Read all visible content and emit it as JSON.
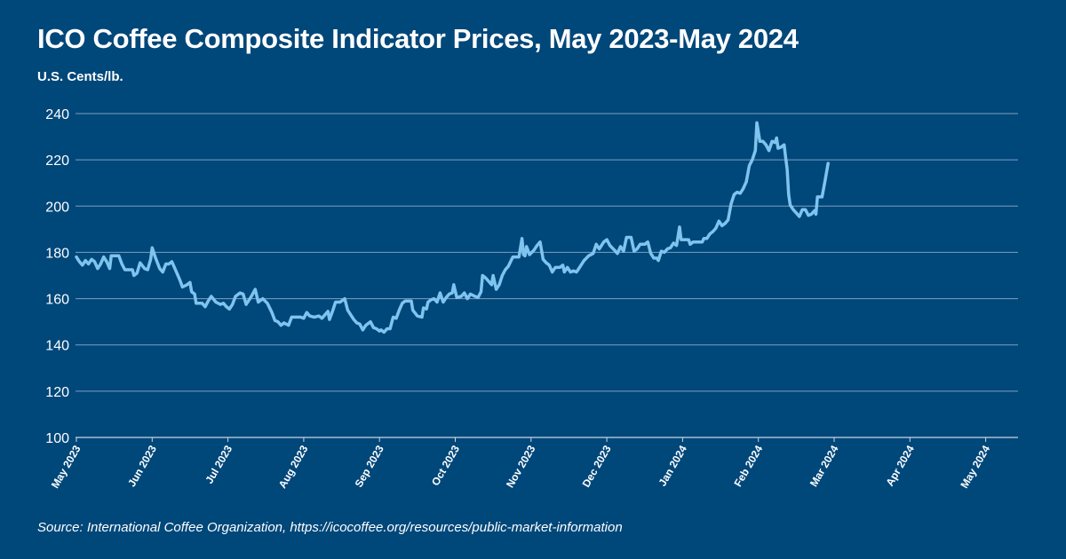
{
  "chart_data": {
    "type": "line",
    "title": "ICO Coffee Composite Indicator Prices, May 2023-May 2024",
    "ylabel": "U.S. Cents/lb.",
    "source": "Source: International Coffee Organization, https://icocoffee.org/resources/public-market-information",
    "ylim": [
      100,
      240
    ],
    "yticks": [
      100,
      120,
      140,
      160,
      180,
      200,
      220,
      240
    ],
    "x_tick_labels": [
      "May 2023",
      "Jun 2023",
      "Jul 2023",
      "Aug 2023",
      "Sep 2023",
      "Oct 2023",
      "Nov 2023",
      "Dec 2023",
      "Jan 2024",
      "Feb 2024",
      "Mar 2024",
      "Apr 2024",
      "May 2024"
    ],
    "grid": true,
    "line_color": "#7fc4ef",
    "grid_color": "#7f9fbf",
    "series": [
      {
        "points": [
          [
            0,
            178
          ],
          [
            0.04,
            176
          ],
          [
            0.08,
            174.5
          ],
          [
            0.12,
            176.5
          ],
          [
            0.16,
            175
          ],
          [
            0.2,
            177
          ],
          [
            0.24,
            176
          ],
          [
            0.28,
            173
          ],
          [
            0.32,
            175
          ],
          [
            0.36,
            178
          ],
          [
            0.4,
            176
          ],
          [
            0.44,
            173
          ],
          [
            0.46,
            178.5
          ],
          [
            0.52,
            178.5
          ],
          [
            0.56,
            178.5
          ],
          [
            0.6,
            175
          ],
          [
            0.64,
            172.5
          ],
          [
            0.7,
            172.5
          ],
          [
            0.74,
            172.5
          ],
          [
            0.76,
            170
          ],
          [
            0.8,
            171
          ],
          [
            0.84,
            175.5
          ],
          [
            0.9,
            173
          ],
          [
            0.94,
            172.5
          ],
          [
            0.98,
            177
          ],
          [
            1.0,
            182
          ],
          [
            1.04,
            178
          ],
          [
            1.1,
            173
          ],
          [
            1.14,
            171.5
          ],
          [
            1.18,
            175
          ],
          [
            1.22,
            175
          ],
          [
            1.26,
            176
          ],
          [
            1.3,
            173
          ],
          [
            1.36,
            168.5
          ],
          [
            1.4,
            165
          ],
          [
            1.46,
            166
          ],
          [
            1.5,
            167
          ],
          [
            1.52,
            163
          ],
          [
            1.56,
            162
          ],
          [
            1.58,
            158
          ],
          [
            1.62,
            158
          ],
          [
            1.66,
            158
          ],
          [
            1.7,
            156.5
          ],
          [
            1.74,
            159
          ],
          [
            1.78,
            161
          ],
          [
            1.84,
            158.5
          ],
          [
            1.9,
            157.5
          ],
          [
            1.94,
            158
          ],
          [
            1.98,
            156.5
          ],
          [
            2.02,
            155.5
          ],
          [
            2.06,
            157.5
          ],
          [
            2.1,
            161
          ],
          [
            2.16,
            162.5
          ],
          [
            2.2,
            162
          ],
          [
            2.24,
            157.5
          ],
          [
            2.3,
            160.5
          ],
          [
            2.36,
            164
          ],
          [
            2.4,
            158.5
          ],
          [
            2.46,
            160
          ],
          [
            2.52,
            158
          ],
          [
            2.58,
            154
          ],
          [
            2.62,
            150.5
          ],
          [
            2.66,
            150
          ],
          [
            2.7,
            148.5
          ],
          [
            2.74,
            149.5
          ],
          [
            2.8,
            148.5
          ],
          [
            2.84,
            152
          ],
          [
            2.9,
            152
          ],
          [
            2.96,
            152
          ],
          [
            3.0,
            151.5
          ],
          [
            3.04,
            154
          ],
          [
            3.08,
            152.5
          ],
          [
            3.14,
            152
          ],
          [
            3.2,
            152.5
          ],
          [
            3.24,
            151.5
          ],
          [
            3.28,
            153
          ],
          [
            3.32,
            154.5
          ],
          [
            3.34,
            151
          ],
          [
            3.38,
            154.5
          ],
          [
            3.42,
            158.5
          ],
          [
            3.48,
            158.5
          ],
          [
            3.54,
            160
          ],
          [
            3.58,
            155
          ],
          [
            3.62,
            153
          ],
          [
            3.66,
            151
          ],
          [
            3.7,
            149.5
          ],
          [
            3.74,
            149
          ],
          [
            3.78,
            146.5
          ],
          [
            3.82,
            148.5
          ],
          [
            3.88,
            150
          ],
          [
            3.92,
            147.5
          ],
          [
            3.96,
            147
          ],
          [
            4.0,
            146
          ],
          [
            4.02,
            146.5
          ],
          [
            4.06,
            145.5
          ],
          [
            4.1,
            147
          ],
          [
            4.14,
            147
          ],
          [
            4.18,
            152
          ],
          [
            4.22,
            151.5
          ],
          [
            4.26,
            155
          ],
          [
            4.3,
            158
          ],
          [
            4.34,
            159
          ],
          [
            4.38,
            159
          ],
          [
            4.42,
            159
          ],
          [
            4.44,
            155
          ],
          [
            4.5,
            152.5
          ],
          [
            4.56,
            152
          ],
          [
            4.58,
            156
          ],
          [
            4.62,
            155.5
          ],
          [
            4.64,
            158.5
          ],
          [
            4.68,
            159.5
          ],
          [
            4.72,
            160
          ],
          [
            4.76,
            158.5
          ],
          [
            4.8,
            162.5
          ],
          [
            4.84,
            158.5
          ],
          [
            4.88,
            160.5
          ],
          [
            4.92,
            162
          ],
          [
            4.96,
            162.5
          ],
          [
            4.98,
            166
          ],
          [
            5.02,
            160.5
          ],
          [
            5.08,
            161
          ],
          [
            5.12,
            162.5
          ],
          [
            5.16,
            160
          ],
          [
            5.2,
            162
          ],
          [
            5.26,
            161
          ],
          [
            5.3,
            160.5
          ],
          [
            5.34,
            163
          ],
          [
            5.36,
            170
          ],
          [
            5.4,
            169
          ],
          [
            5.44,
            167.5
          ],
          [
            5.48,
            166
          ],
          [
            5.5,
            170
          ],
          [
            5.54,
            164
          ],
          [
            5.58,
            166
          ],
          [
            5.62,
            170
          ],
          [
            5.66,
            172.5
          ],
          [
            5.7,
            174
          ],
          [
            5.76,
            178
          ],
          [
            5.8,
            178
          ],
          [
            5.84,
            178
          ],
          [
            5.88,
            186
          ],
          [
            5.9,
            179
          ],
          [
            5.92,
            178.5
          ],
          [
            5.94,
            182.5
          ],
          [
            5.98,
            179
          ],
          [
            6.04,
            181
          ],
          [
            6.08,
            183
          ],
          [
            6.12,
            184.5
          ],
          [
            6.16,
            177
          ],
          [
            6.2,
            175.5
          ],
          [
            6.24,
            174.5
          ],
          [
            6.28,
            171.5
          ],
          [
            6.32,
            173.5
          ],
          [
            6.38,
            173.5
          ],
          [
            6.42,
            174.5
          ],
          [
            6.44,
            171.5
          ],
          [
            6.48,
            173.5
          ],
          [
            6.52,
            171.5
          ],
          [
            6.56,
            172
          ],
          [
            6.6,
            171.5
          ],
          [
            6.64,
            173.5
          ],
          [
            6.7,
            176.5
          ],
          [
            6.76,
            178.5
          ],
          [
            6.82,
            179.5
          ],
          [
            6.86,
            183.5
          ],
          [
            6.9,
            181.5
          ],
          [
            6.96,
            184.5
          ],
          [
            7.0,
            185.5
          ],
          [
            7.04,
            183
          ],
          [
            7.1,
            181
          ],
          [
            7.14,
            179.5
          ],
          [
            7.18,
            182.5
          ],
          [
            7.22,
            180.5
          ],
          [
            7.26,
            186.5
          ],
          [
            7.32,
            186.5
          ],
          [
            7.36,
            180.5
          ],
          [
            7.4,
            181.5
          ],
          [
            7.44,
            183.5
          ],
          [
            7.5,
            183.5
          ],
          [
            7.54,
            184.5
          ],
          [
            7.58,
            179.5
          ],
          [
            7.62,
            177.5
          ],
          [
            7.66,
            177.5
          ],
          [
            7.68,
            176.5
          ],
          [
            7.72,
            180.5
          ],
          [
            7.76,
            180
          ],
          [
            7.8,
            181.5
          ],
          [
            7.84,
            182
          ],
          [
            7.88,
            184
          ],
          [
            7.92,
            183
          ],
          [
            7.96,
            191
          ],
          [
            7.98,
            185.5
          ],
          [
            8.04,
            185.5
          ],
          [
            8.08,
            185.5
          ],
          [
            8.1,
            183.5
          ],
          [
            8.14,
            184.5
          ],
          [
            8.2,
            184.5
          ],
          [
            8.26,
            184.5
          ],
          [
            8.28,
            186
          ],
          [
            8.32,
            186
          ],
          [
            8.36,
            188
          ],
          [
            8.4,
            189
          ],
          [
            8.44,
            190.5
          ],
          [
            8.48,
            193.5
          ],
          [
            8.52,
            191.5
          ],
          [
            8.56,
            192.5
          ],
          [
            8.6,
            194
          ],
          [
            8.64,
            201
          ],
          [
            8.68,
            205
          ],
          [
            8.72,
            206
          ],
          [
            8.76,
            205.5
          ],
          [
            8.8,
            207.5
          ],
          [
            8.84,
            210.5
          ],
          [
            8.88,
            217.5
          ],
          [
            8.92,
            220
          ],
          [
            8.96,
            224
          ],
          [
            8.98,
            236
          ],
          [
            9.02,
            228
          ],
          [
            9.06,
            228
          ],
          [
            9.1,
            226.5
          ],
          [
            9.14,
            224
          ],
          [
            9.18,
            228
          ],
          [
            9.22,
            227.5
          ],
          [
            9.24,
            229.5
          ],
          [
            9.26,
            225
          ],
          [
            9.3,
            225.5
          ],
          [
            9.34,
            226.5
          ],
          [
            9.36,
            221
          ],
          [
            9.38,
            216
          ],
          [
            9.4,
            205
          ],
          [
            9.42,
            200.5
          ],
          [
            9.46,
            198.5
          ],
          [
            9.5,
            197
          ],
          [
            9.54,
            195.5
          ],
          [
            9.58,
            198.5
          ],
          [
            9.62,
            198.5
          ],
          [
            9.66,
            196
          ],
          [
            9.7,
            196.5
          ],
          [
            9.74,
            198
          ],
          [
            9.76,
            196.5
          ],
          [
            9.78,
            204
          ],
          [
            9.84,
            204
          ],
          [
            9.88,
            211
          ],
          [
            9.92,
            218.5
          ]
        ]
      }
    ]
  }
}
